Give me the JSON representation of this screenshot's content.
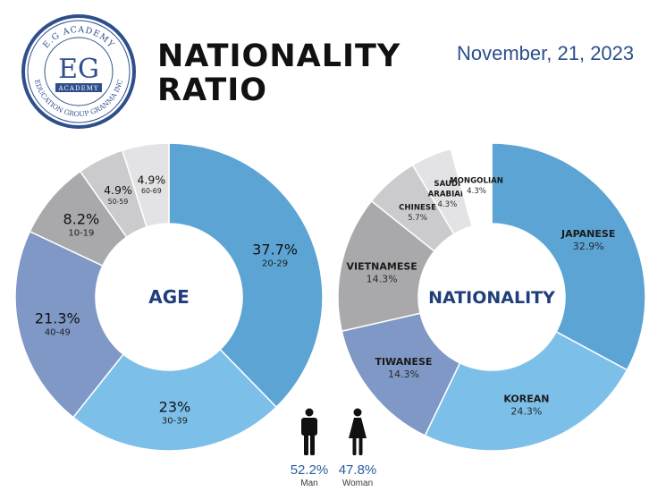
{
  "header": {
    "title_line1": "NATIONALITY",
    "title_line2": "RATIO",
    "date": "November, 21, 2023"
  },
  "logo": {
    "top_text": "E.G ACADEMY",
    "monogram": "EG",
    "banner": "ACADEMY",
    "bottom_text": "EDUCATION GROUP GRANMA INC"
  },
  "colors": {
    "blue": "#5ba4d4",
    "light_blue": "#7cc0ea",
    "slate_blue": "#7f98c6",
    "gray": "#a9a9ab",
    "light_gray": "#cbcbcd",
    "lighter_gray": "#e3e3e5",
    "label_navy": "#1f3f7a",
    "logo_blue": "#2f4f8c"
  },
  "chart_data": [
    {
      "type": "pie",
      "center_label": "AGE",
      "slices": [
        {
          "label": "20-29",
          "value": 37.7,
          "display": "37.7%",
          "color": "#5ba4d4"
        },
        {
          "label": "30-39",
          "value": 23,
          "display": "23%",
          "color": "#7cc0ea"
        },
        {
          "label": "40-49",
          "value": 21.3,
          "display": "21.3%",
          "color": "#7f98c6"
        },
        {
          "label": "10-19",
          "value": 8.2,
          "display": "8.2%",
          "color": "#a9a9ab"
        },
        {
          "label": "50-59",
          "value": 4.9,
          "display": "4.9%",
          "color": "#cbcbcd"
        },
        {
          "label": "60-69",
          "value": 4.9,
          "display": "4.9%",
          "color": "#e3e3e5"
        }
      ]
    },
    {
      "type": "pie",
      "center_label": "NATIONALITY",
      "slices": [
        {
          "label": "JAPANESE",
          "value": 32.9,
          "display": "32.9%",
          "color": "#5ba4d4"
        },
        {
          "label": "KOREAN",
          "value": 24.3,
          "display": "24.3%",
          "color": "#7cc0ea"
        },
        {
          "label": "TIWANESE",
          "value": 14.3,
          "display": "14.3%",
          "color": "#7f98c6"
        },
        {
          "label": "VIETNAMESE",
          "value": 14.3,
          "display": "14.3%",
          "color": "#a9a9ab"
        },
        {
          "label": "CHINESE",
          "value": 5.7,
          "display": "5.7%",
          "color": "#cbcbcd"
        },
        {
          "label": "SAUDI ARABIAN",
          "value": 4.3,
          "display": "4.3%",
          "color": "#e3e3e5"
        },
        {
          "label": "MONGOLIAN",
          "value": 4.3,
          "display": "4.3%",
          "color": "#ffffff"
        }
      ]
    }
  ],
  "gender": {
    "man": {
      "percent": "52.2%",
      "label": "Man",
      "icon": "man-icon"
    },
    "woman": {
      "percent": "47.8%",
      "label": "Woman",
      "icon": "woman-icon"
    }
  }
}
